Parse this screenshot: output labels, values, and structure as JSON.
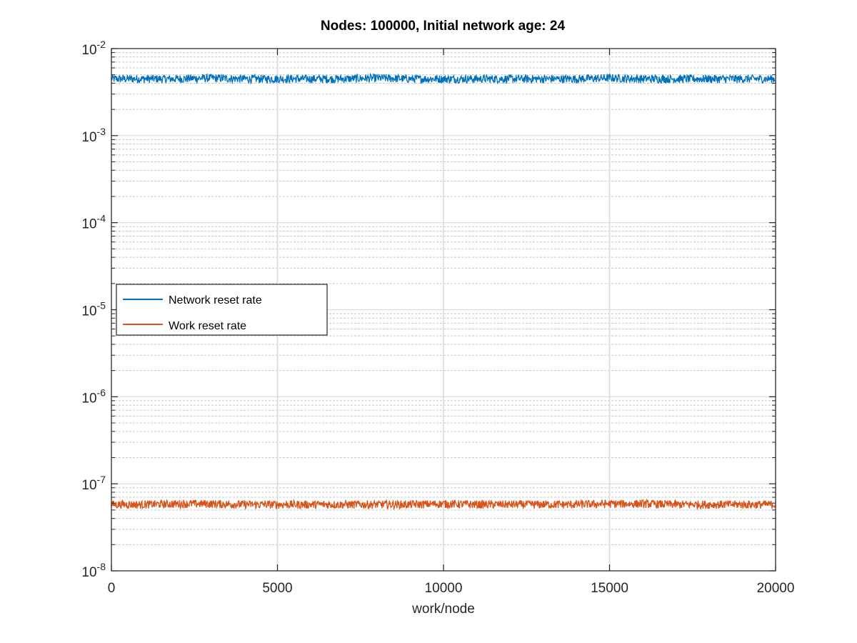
{
  "chart_data": {
    "type": "line",
    "title": "Nodes: 100000, Initial network age: 24",
    "xlabel": "work/node",
    "ylabel": "",
    "xlim": [
      0,
      20000
    ],
    "ylim": [
      1e-08,
      0.01
    ],
    "yscale": "log",
    "grid": true,
    "minor_grid": true,
    "legend_position": "left",
    "x_ticks": [
      {
        "value": 0,
        "label": "0"
      },
      {
        "value": 5000,
        "label": "5000"
      },
      {
        "value": 10000,
        "label": "10000"
      },
      {
        "value": 15000,
        "label": "15000"
      },
      {
        "value": 20000,
        "label": "20000"
      }
    ],
    "y_ticks": [
      {
        "value": 1e-08,
        "base": "10",
        "exp": "-8"
      },
      {
        "value": 1e-07,
        "base": "10",
        "exp": "-7"
      },
      {
        "value": 1e-06,
        "base": "10",
        "exp": "-6"
      },
      {
        "value": 1e-05,
        "base": "10",
        "exp": "-5"
      },
      {
        "value": 0.0001,
        "base": "10",
        "exp": "-4"
      },
      {
        "value": 0.001,
        "base": "10",
        "exp": "-3"
      },
      {
        "value": 0.01,
        "base": "10",
        "exp": "-2"
      }
    ],
    "series": [
      {
        "name": "Network reset rate",
        "color": "#0072BD",
        "x": [
          0,
          1000,
          2000,
          3000,
          4000,
          5000,
          6000,
          7000,
          8000,
          9000,
          10000,
          11000,
          12000,
          13000,
          14000,
          15000,
          16000,
          17000,
          18000,
          19000,
          20000
        ],
        "values": [
          0.0045,
          0.0045,
          0.0045,
          0.0046,
          0.0045,
          0.0045,
          0.0045,
          0.0045,
          0.0046,
          0.0045,
          0.0045,
          0.0045,
          0.0045,
          0.0045,
          0.0045,
          0.0046,
          0.0045,
          0.0045,
          0.0045,
          0.0045,
          0.0045
        ]
      },
      {
        "name": "Work reset rate",
        "color": "#D95319",
        "x": [
          0,
          1000,
          2000,
          3000,
          4000,
          5000,
          6000,
          7000,
          8000,
          9000,
          10000,
          11000,
          12000,
          13000,
          14000,
          15000,
          16000,
          17000,
          18000,
          19000,
          20000
        ],
        "values": [
          5.8e-08,
          5.8e-08,
          5.9e-08,
          5.9e-08,
          5.8e-08,
          5.8e-08,
          5.8e-08,
          5.8e-08,
          5.8e-08,
          5.8e-08,
          5.9e-08,
          5.8e-08,
          5.8e-08,
          5.8e-08,
          5.8e-08,
          5.9e-08,
          5.9e-08,
          5.8e-08,
          5.8e-08,
          5.8e-08,
          5.8e-08
        ]
      }
    ]
  }
}
